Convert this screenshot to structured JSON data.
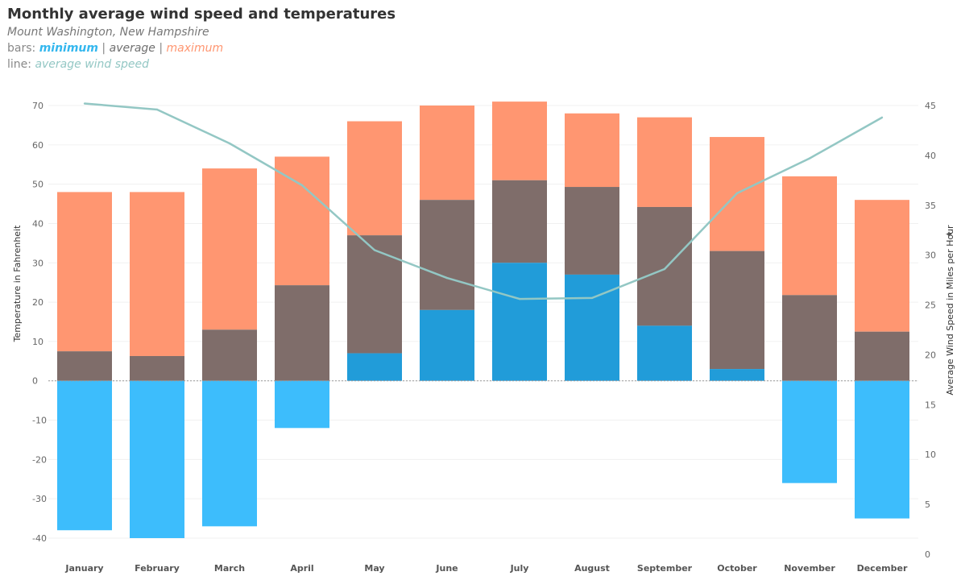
{
  "header": {
    "title": "Monthly average wind speed and temperatures",
    "subtitle": "Mount Washington, New Hampshire",
    "bars_prefix": "bars: ",
    "bars_min": "minimum",
    "bars_sep1": " | ",
    "bars_avg": "average",
    "bars_sep2": "  | ",
    "bars_max": "maximum",
    "line_prefix": "line: ",
    "line_label": "average wind speed"
  },
  "colors": {
    "maximum": "#FF9671",
    "average": "#7F6D6A",
    "minimum_positive": "#219CD9",
    "minimum_negative": "#3DBDFC",
    "wind_line": "#93C7C4",
    "legend_min": "#34B7EE",
    "legend_avg": "#6F6F6F",
    "legend_max": "#FF9671",
    "legend_line": "#93C7C4"
  },
  "pin_icon": "✦",
  "chart_data": {
    "type": "bar",
    "title": "Monthly average wind speed and temperatures",
    "subtitle": "Mount Washington, New Hampshire",
    "categories": [
      "January",
      "February",
      "March",
      "April",
      "May",
      "June",
      "July",
      "August",
      "September",
      "October",
      "November",
      "December"
    ],
    "ylabel": "Temperature in Fahrenheit",
    "y2label": "Average Wind Speed in Miles per Hour",
    "ylim": [
      -40,
      70
    ],
    "y2lim": [
      0,
      45
    ],
    "yticks": [
      "70",
      "60",
      "50",
      "40",
      "30",
      "20",
      "10",
      "0",
      "-10",
      "-20",
      "-30",
      "-40"
    ],
    "y2ticks": [
      "45",
      "40",
      "35",
      "30",
      "25",
      "20",
      "15",
      "10",
      "5",
      "0"
    ],
    "series": [
      {
        "name": "maximum",
        "values": [
          48,
          48,
          54,
          57,
          66,
          70,
          71,
          68,
          67,
          62,
          52,
          46
        ]
      },
      {
        "name": "average",
        "values": [
          7.5,
          6.3,
          13,
          24.3,
          37,
          46,
          51,
          49.3,
          44.2,
          33,
          21.8,
          12.5
        ]
      },
      {
        "name": "minimum",
        "values": [
          -38,
          -40,
          -37,
          -12,
          7,
          18,
          30,
          27,
          14,
          3,
          -26,
          -35
        ]
      },
      {
        "name": "average wind speed",
        "axis": "right",
        "type": "line",
        "values": [
          45.2,
          44.6,
          41.2,
          37,
          30.5,
          27.7,
          25.6,
          25.7,
          28.6,
          36.2,
          39.7,
          43.8
        ]
      }
    ]
  }
}
